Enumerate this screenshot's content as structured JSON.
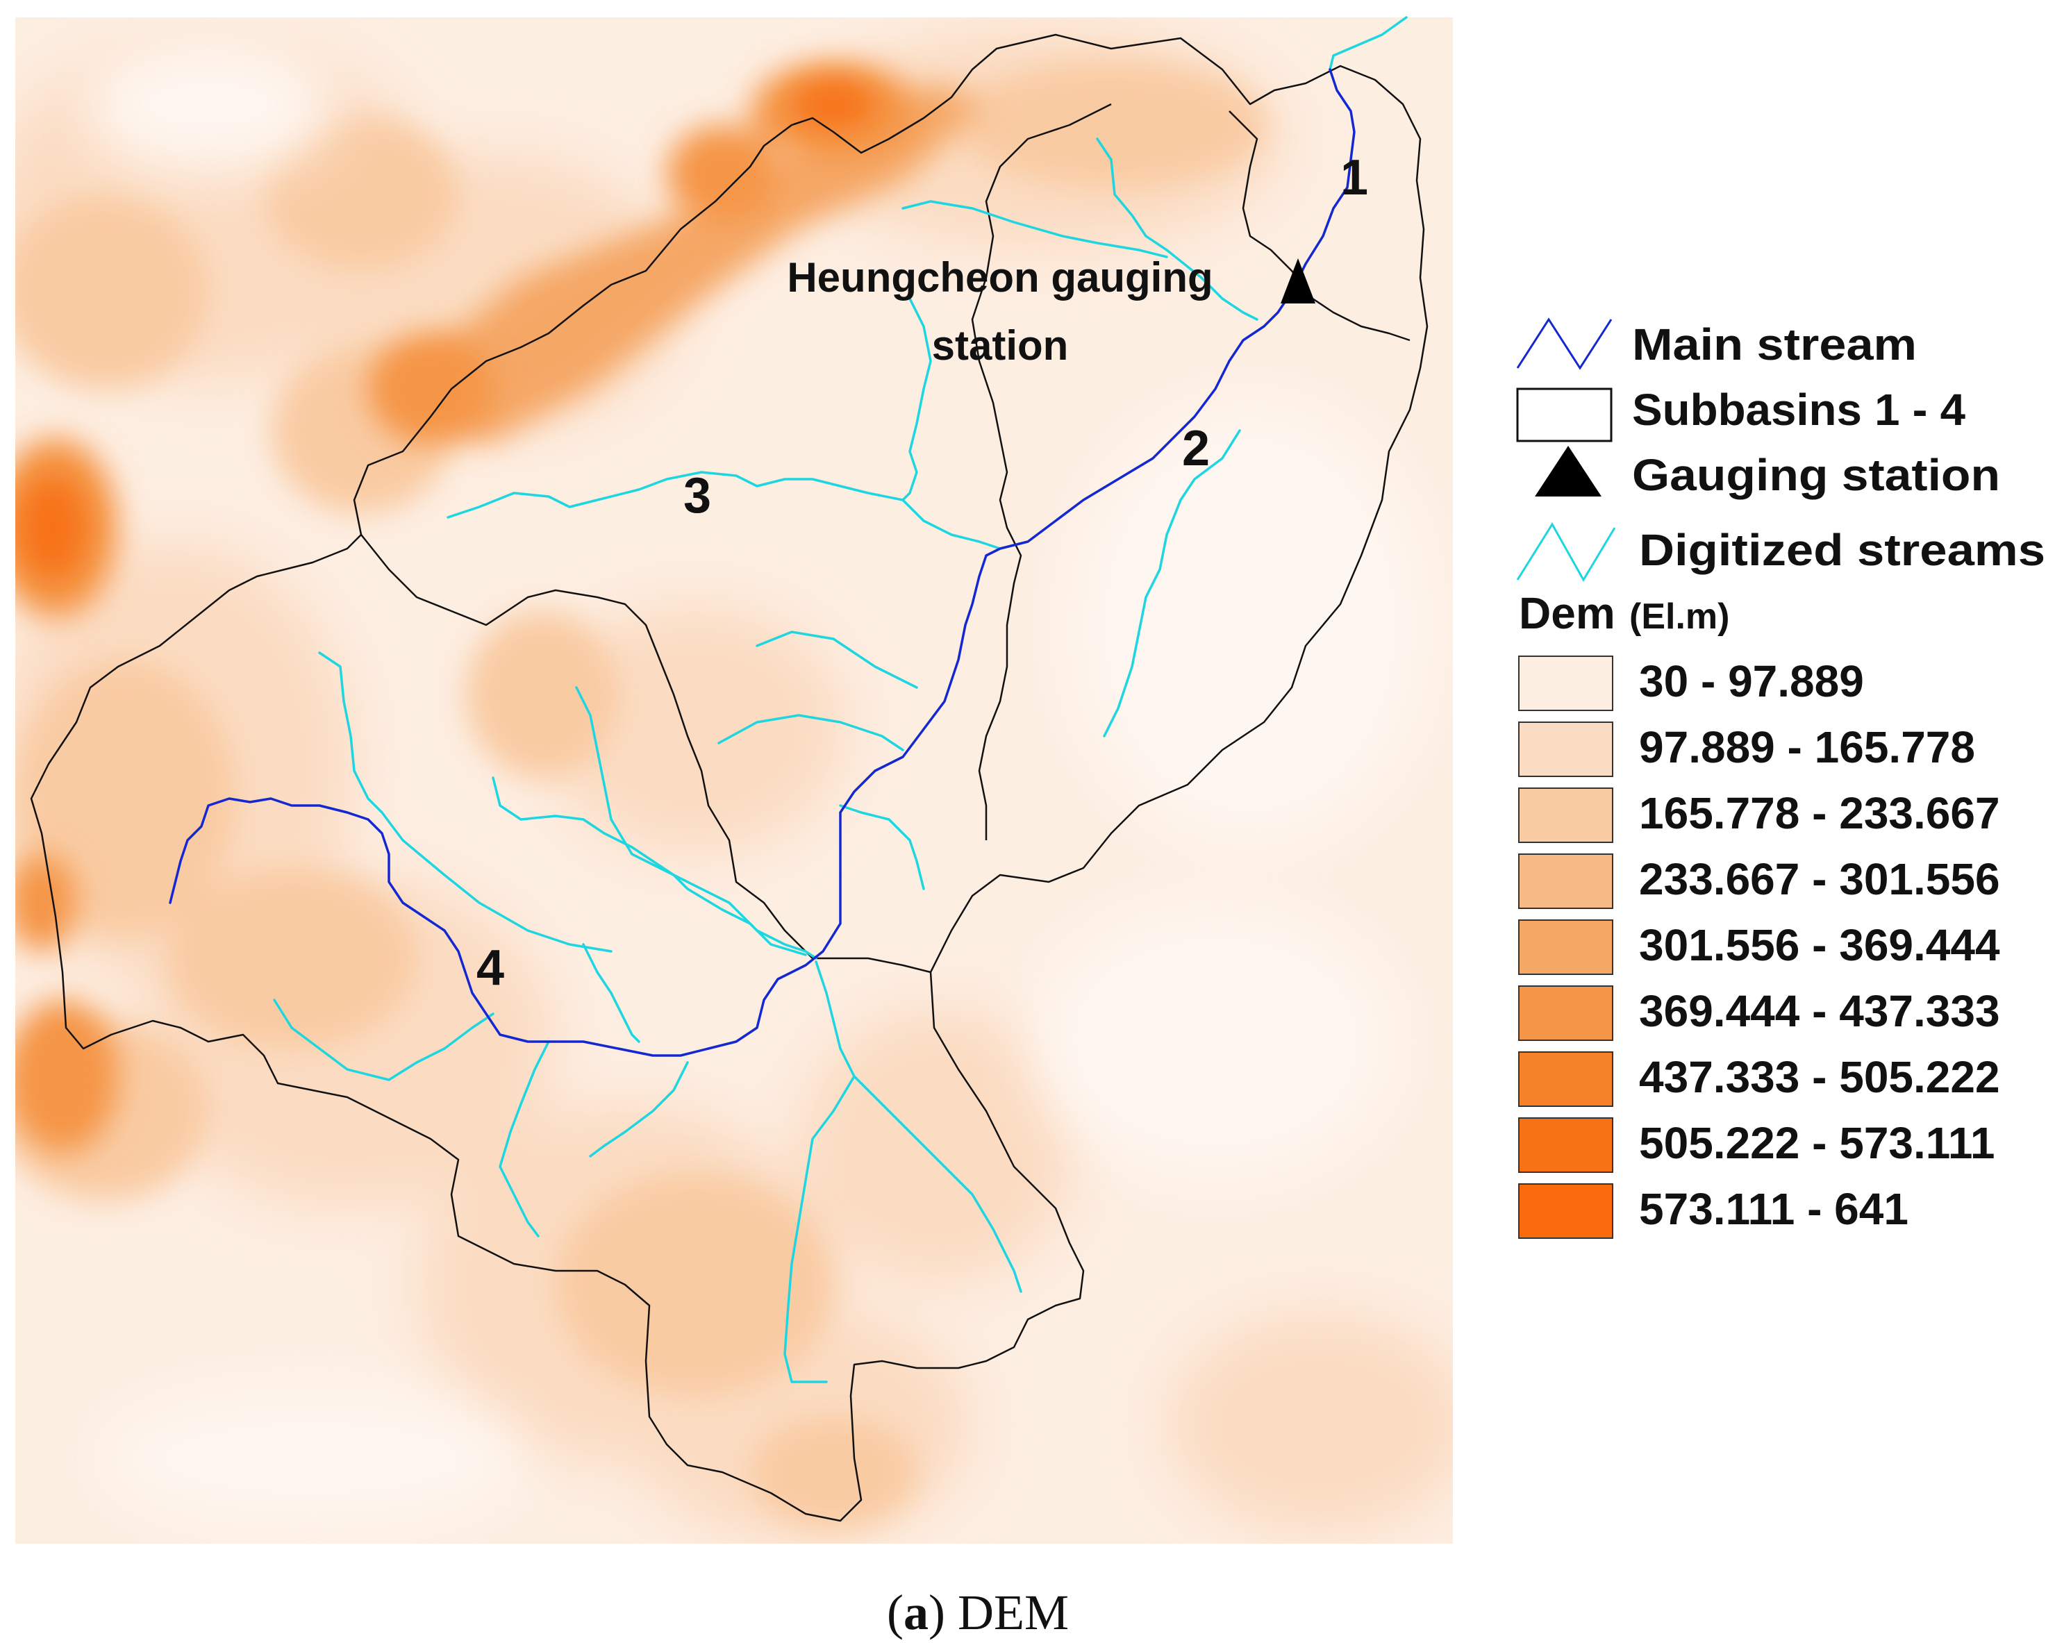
{
  "map": {
    "station_label_line1": "Heungcheon gauging",
    "station_label_line2": "station",
    "subbasin_labels": [
      "1",
      "2",
      "3",
      "4"
    ]
  },
  "legend": {
    "main_stream": "Main stream",
    "subbasins": "Subbasins 1 - 4",
    "gauging_station": "Gauging station",
    "digitized_streams": "Digitized streams",
    "dem_title": "Dem",
    "dem_unit": "(El.m)",
    "classes": [
      {
        "label": "30 - 97.889",
        "color": "#fdeee2"
      },
      {
        "label": "97.889 - 165.778",
        "color": "#fbdcc2"
      },
      {
        "label": "165.778 - 233.667",
        "color": "#f9cba3"
      },
      {
        "label": "233.667 - 301.556",
        "color": "#f7b985"
      },
      {
        "label": "301.556 - 369.444",
        "color": "#f5a766"
      },
      {
        "label": "369.444 - 437.333",
        "color": "#f59547"
      },
      {
        "label": "437.333 - 505.222",
        "color": "#f58228"
      },
      {
        "label": "505.222 - 573.111",
        "color": "#f77215"
      },
      {
        "label": "573.111 - 641",
        "color": "#fb6a0c"
      }
    ]
  },
  "colors": {
    "main_stream": "#1428d2",
    "digitized_streams": "#1ed6e0",
    "boundary": "#111111",
    "station": "#000000"
  },
  "caption": {
    "letter": "a",
    "text": " DEM"
  }
}
